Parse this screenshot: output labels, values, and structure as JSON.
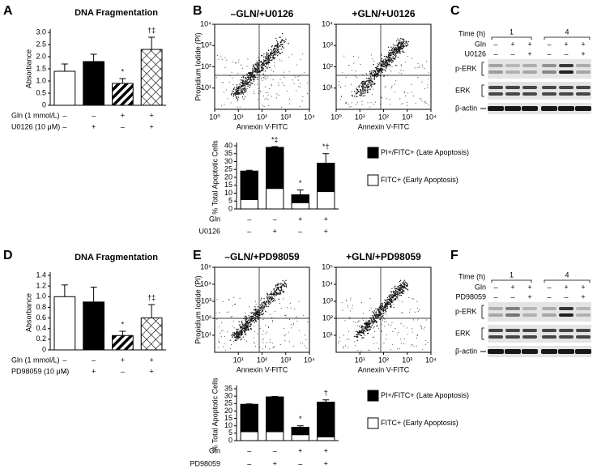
{
  "chart_data": [
    {
      "panel": "A",
      "type": "bar",
      "title": "DNA Fragmentation",
      "ylabel": "Absorbance",
      "values": [
        1.4,
        1.8,
        0.9,
        2.3
      ],
      "errors": [
        0.3,
        0.3,
        0.2,
        0.5
      ],
      "fills": [
        "white",
        "black",
        "hatch",
        "crosshatch"
      ],
      "annotations": [
        null,
        null,
        "*",
        "†‡"
      ],
      "conditions": [
        {
          "label": "Gln (1 mmol/L)",
          "values": [
            "–",
            "–",
            "+",
            "+"
          ]
        },
        {
          "label": "U0126 (10 μM)",
          "values": [
            "–",
            "+",
            "–",
            "+"
          ]
        }
      ],
      "ylim": [
        0,
        3
      ],
      "yticks": [
        0,
        0.5,
        {
          "value": 1,
          "label": "1.0"
        },
        1.5,
        {
          "value": 2,
          "label": "2.0"
        },
        2.5,
        {
          "value": 3,
          "label": "3.0"
        }
      ]
    },
    {
      "panel": "B",
      "type": "stacked_bar",
      "ylabel": "% Total Apoptotic Cells",
      "series": [
        {
          "name": "FITC+ (Early Apoptosis)",
          "color": "#ffffff",
          "values": [
            6,
            13,
            4,
            11
          ]
        },
        {
          "name": "PI+/FITC+ (Late Apoptosis)",
          "color": "#000000",
          "values": [
            18,
            26,
            5,
            18
          ],
          "errors": [
            0.5,
            0.5,
            3,
            6
          ]
        }
      ],
      "annotations": [
        null,
        "*‡",
        "*",
        "*†"
      ],
      "conditions": [
        {
          "label": "Gln",
          "values": [
            "–",
            "–",
            "+",
            "+"
          ]
        },
        {
          "label": "U0126",
          "values": [
            "–",
            "+",
            "–",
            "+"
          ]
        }
      ],
      "ylim": [
        0,
        40
      ],
      "yticks": [
        0,
        5,
        10,
        15,
        20,
        25,
        30,
        35,
        40
      ]
    },
    {
      "panel": "D",
      "type": "bar",
      "title": "DNA Fragmentation",
      "ylabel": "Absorbance",
      "values": [
        1.0,
        0.9,
        0.27,
        0.6
      ],
      "errors": [
        0.22,
        0.28,
        0.08,
        0.25
      ],
      "fills": [
        "white",
        "black",
        "hatch",
        "crosshatch"
      ],
      "annotations": [
        null,
        null,
        "*",
        "†‡"
      ],
      "conditions": [
        {
          "label": "Gln (1 mmol/L)",
          "values": [
            "–",
            "–",
            "+",
            "+"
          ]
        },
        {
          "label": "PD98059 (10 μM)",
          "values": [
            "–",
            "+",
            "–",
            "+"
          ]
        }
      ],
      "ylim": [
        0,
        1.4
      ],
      "yticks": [
        0,
        0.2,
        0.4,
        0.6,
        0.8,
        {
          "value": 1,
          "label": "1.0"
        },
        1.2,
        1.4
      ]
    },
    {
      "panel": "E",
      "type": "stacked_bar",
      "ylabel": "% Total Apoptotic Cells",
      "series": [
        {
          "name": "FITC+ (Early Apoptosis)",
          "color": "#ffffff",
          "values": [
            6,
            6,
            4,
            2.5
          ]
        },
        {
          "name": "PI+/FITC+ (Late Apoptosis)",
          "color": "#000000",
          "values": [
            18.5,
            23.5,
            5,
            23.5
          ],
          "errors": [
            0.3,
            0.3,
            1,
            1.5
          ]
        }
      ],
      "annotations": [
        null,
        null,
        "*",
        "†"
      ],
      "conditions": [
        {
          "label": "Gln",
          "values": [
            "–",
            "–",
            "+",
            "+"
          ]
        },
        {
          "label": "PD98059",
          "values": [
            "–",
            "+",
            "–",
            "+"
          ]
        }
      ],
      "ylim": [
        0,
        35
      ],
      "yticks": [
        0,
        5,
        10,
        15,
        20,
        25,
        30,
        35
      ]
    }
  ],
  "flow_plots": [
    {
      "panel": "B",
      "titles": [
        "–GLN/+U0126",
        "+GLN/+U0126"
      ],
      "ylabel": "Propidium Iodide (PI)",
      "xlabel": "Annexin V-FITC",
      "log": true,
      "xlim": [
        1,
        10000
      ],
      "xticks": [
        {
          "value": 1,
          "label": "10⁰"
        },
        {
          "value": 10,
          "label": "10¹"
        },
        {
          "value": 100,
          "label": "10²"
        },
        {
          "value": 1000,
          "label": "10³"
        },
        {
          "value": 10000,
          "label": "10⁴"
        }
      ],
      "ylim": [
        1,
        10000
      ],
      "yticks": [
        {
          "value": 10,
          "label": "10¹"
        },
        {
          "value": 100,
          "label": "10²"
        },
        {
          "value": 1000,
          "label": "10³"
        },
        {
          "value": 10000,
          "label": "10⁴"
        }
      ]
    },
    {
      "panel": "E",
      "titles": [
        "–GLN/+PD98059",
        "+GLN/+PD98059"
      ],
      "ylabel": "Propidium Iodide (PI)",
      "xlabel": "Annexin V-FITC",
      "log": true,
      "xlim": [
        1,
        10000
      ],
      "xticks": [
        {
          "value": 10,
          "label": "10¹"
        },
        {
          "value": 100,
          "label": "10²"
        },
        {
          "value": 1000,
          "label": "10³"
        },
        {
          "value": 10000,
          "label": "10⁴"
        }
      ],
      "ylim": [
        1,
        100000
      ],
      "yticks": [
        {
          "value": 10,
          "label": "10¹"
        },
        {
          "value": 100,
          "label": "10²"
        },
        {
          "value": 1000,
          "label": "10³"
        },
        {
          "value": 10000,
          "label": "10⁴"
        },
        {
          "value": 100000,
          "label": "10⁵"
        }
      ]
    }
  ],
  "blots": [
    {
      "panel": "C",
      "time_label": "Time (h)",
      "times": [
        "1",
        "4"
      ],
      "rows": [
        {
          "label": "Gln",
          "values": [
            "–",
            "+",
            "+",
            "–",
            "+",
            "+"
          ]
        },
        {
          "label": "U0126",
          "values": [
            "–",
            "–",
            "+",
            "–",
            "–",
            "+"
          ]
        }
      ],
      "bands": [
        "p-ERK",
        "ERK",
        "β-actin"
      ]
    },
    {
      "panel": "F",
      "time_label": "Time (h)",
      "times": [
        "1",
        "4"
      ],
      "rows": [
        {
          "label": "Gln",
          "values": [
            "–",
            "+",
            "+",
            "–",
            "+",
            "+"
          ]
        },
        {
          "label": "PD98059",
          "values": [
            "–",
            "–",
            "+",
            "–",
            "–",
            "+"
          ]
        }
      ],
      "bands": [
        "p-ERK",
        "ERK",
        "β-actin"
      ]
    }
  ]
}
